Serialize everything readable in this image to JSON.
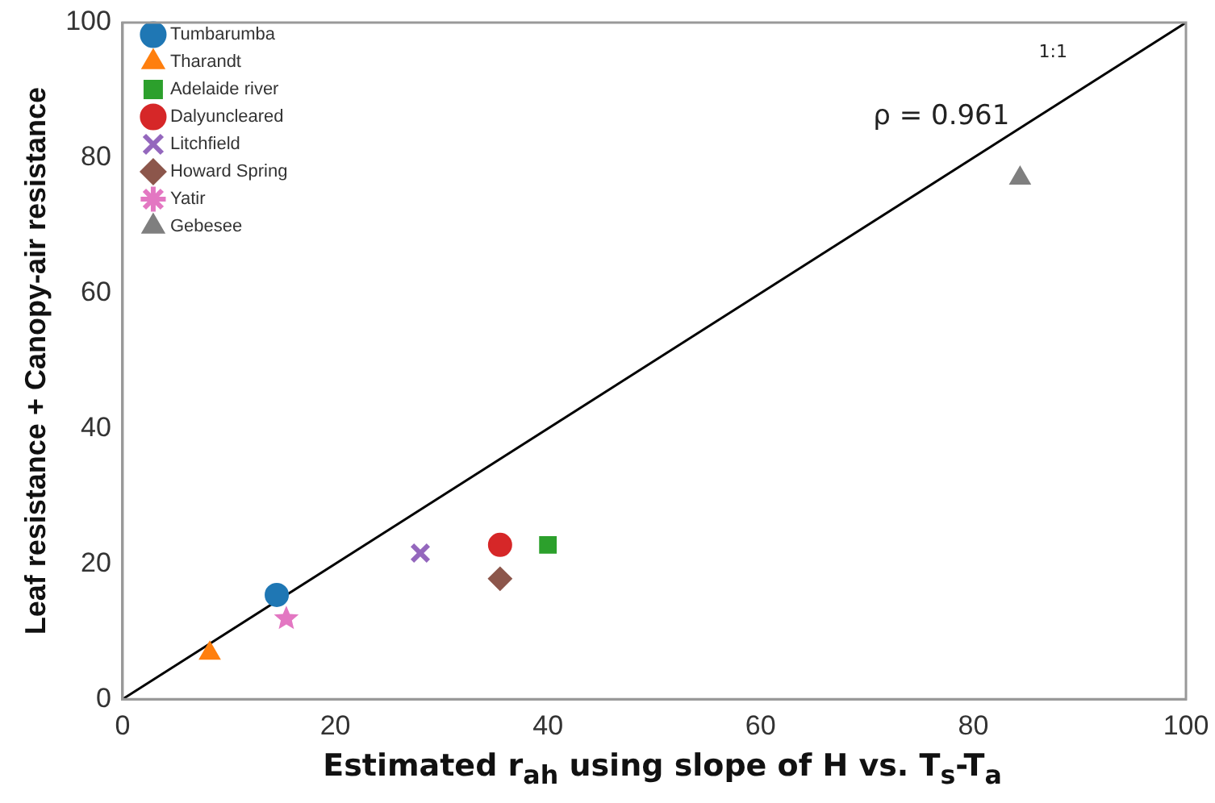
{
  "chart_data": {
    "type": "scatter",
    "xlabel": "Estimated r$_{ah}$ using slope of H vs. T$_{s}$-T$_{a}$",
    "ylabel": "Leaf resistance + Canopy-air resistance",
    "xlim": [
      0,
      100
    ],
    "ylim": [
      0,
      100
    ],
    "xticks": [
      0,
      20,
      40,
      60,
      80,
      100
    ],
    "yticks": [
      0,
      20,
      40,
      60,
      80,
      100
    ],
    "grid": false,
    "legend": "top left",
    "annotations": [
      "1:1",
      "ρ = 0.961"
    ],
    "series": [
      {
        "name": "Tumbarumba",
        "color": "#1f77b4",
        "marker": "circle",
        "x": [
          14.5
        ],
        "values": [
          15.4
        ]
      },
      {
        "name": "Tharandt",
        "color": "#ff7f0e",
        "marker": "triangle",
        "x": [
          8.2
        ],
        "values": [
          6.8
        ]
      },
      {
        "name": "Adelaide river",
        "color": "#2ca02c",
        "marker": "square",
        "x": [
          40
        ],
        "values": [
          22.8
        ]
      },
      {
        "name": "Dalyuncleared",
        "color": "#d62728",
        "marker": "circle",
        "x": [
          35.5
        ],
        "values": [
          22.8
        ]
      },
      {
        "name": "Litchfield",
        "color": "#9467bd",
        "marker": "cross",
        "x": [
          28
        ],
        "values": [
          21.6
        ]
      },
      {
        "name": "Howard Spring",
        "color": "#8c564b",
        "marker": "diamond",
        "x": [
          35.5
        ],
        "values": [
          17.8
        ]
      },
      {
        "name": "Yatir",
        "color": "#e377c2",
        "marker": "star",
        "x": [
          15.4
        ],
        "values": [
          11.9
        ]
      },
      {
        "name": "Gebesee",
        "color": "#7f7f7f",
        "marker": "triangle",
        "x": [
          84.4
        ],
        "values": [
          77
        ]
      },
      {
        "type": "line",
        "color": "#000000",
        "marker": "none",
        "x": [
          0,
          100
        ],
        "values": [
          0,
          100
        ]
      }
    ]
  }
}
